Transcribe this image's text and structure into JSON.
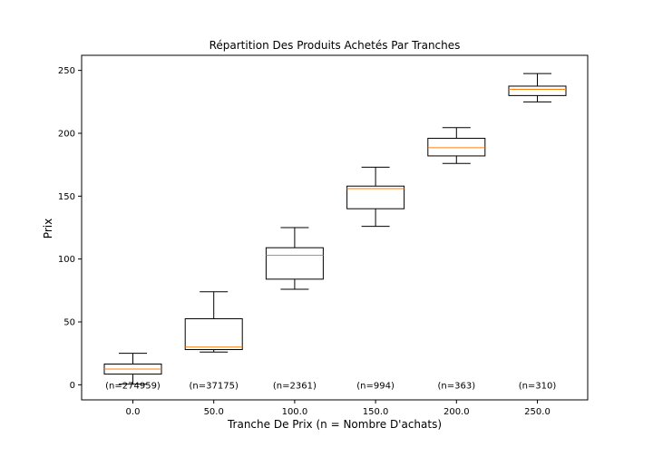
{
  "chart_data": {
    "type": "box",
    "title": "Répartition Des Produits Achetés Par Tranches",
    "xlabel": "Tranche De Prix (n = Nombre D'achats)",
    "ylabel": "Prix",
    "ylim": [
      -12,
      262
    ],
    "yticks": [
      0,
      50,
      100,
      150,
      200,
      250
    ],
    "categories": [
      "0.0",
      "50.0",
      "100.0",
      "150.0",
      "200.0",
      "250.0"
    ],
    "counts": [
      "(n=274959)",
      "(n=37175)",
      "(n=2361)",
      "(n=994)",
      "(n=363)",
      "(n=310)"
    ],
    "boxes": [
      {
        "whisker_low": 0.5,
        "q1": 8.5,
        "median": 12.5,
        "q3": 16.5,
        "whisker_high": 25
      },
      {
        "whisker_low": 26,
        "q1": 28,
        "median": 30,
        "q3": 52.5,
        "whisker_high": 74
      },
      {
        "whisker_low": 76,
        "q1": 84,
        "median": 103,
        "q3": 109,
        "whisker_high": 125
      },
      {
        "whisker_low": 126,
        "q1": 140,
        "median": 156,
        "q3": 158,
        "whisker_high": 173
      },
      {
        "whisker_low": 176,
        "q1": 182,
        "median": 188.5,
        "q3": 196,
        "whisker_high": 204.5
      },
      {
        "whisker_low": 225,
        "q1": 230,
        "median": 235,
        "q3": 237.5,
        "whisker_high": 247.5
      }
    ],
    "colors": {
      "box": "#000000",
      "median": "#ff7f0e"
    },
    "grid": false
  }
}
